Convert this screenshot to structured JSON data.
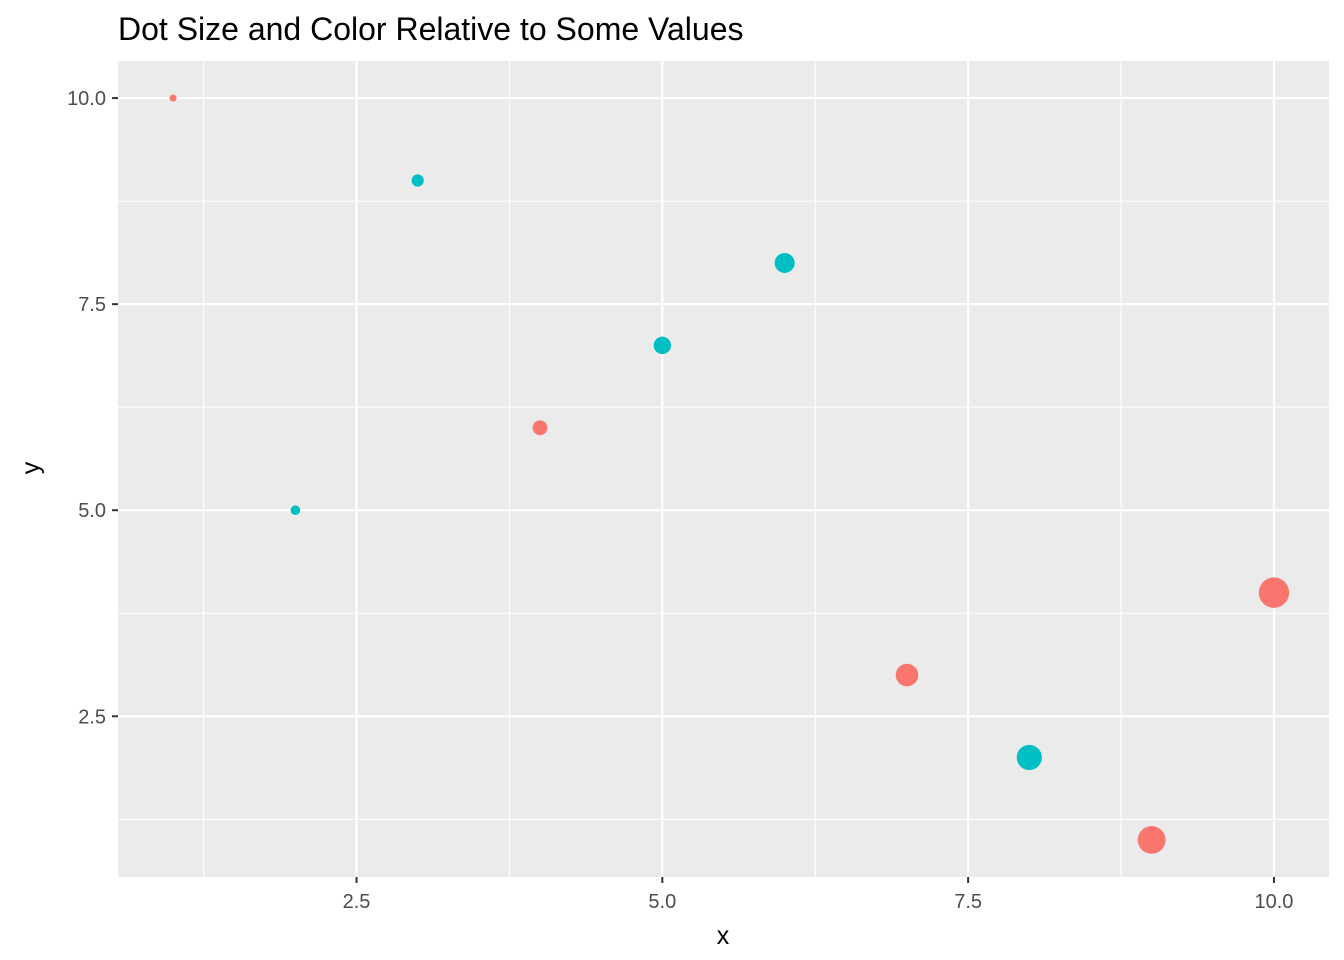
{
  "chart_data": {
    "type": "scatter",
    "title": "Dot Size and Color Relative to Some Values",
    "xlabel": "x",
    "ylabel": "y",
    "xlim": [
      0.55,
      10.45
    ],
    "ylim": [
      0.55,
      10.45
    ],
    "x_ticks": [
      2.5,
      5.0,
      7.5,
      10.0
    ],
    "x_tick_labels": [
      "2.5",
      "5.0",
      "7.5",
      "10.0"
    ],
    "y_ticks": [
      2.5,
      5.0,
      7.5,
      10.0
    ],
    "y_tick_labels": [
      "2.5",
      "5.0",
      "7.5",
      "10.0"
    ],
    "x_minor_ticks": [
      1.25,
      3.75,
      6.25,
      8.75
    ],
    "y_minor_ticks": [
      1.25,
      3.75,
      6.25,
      8.75
    ],
    "grid": true,
    "legend": "none",
    "colors": {
      "panel": "#ebebeb",
      "grid": "#ffffff",
      "group_a": "#f8766d",
      "group_b": "#00bfc4"
    },
    "points": [
      {
        "x": 1,
        "y": 10,
        "size": 1,
        "group": "group_a"
      },
      {
        "x": 2,
        "y": 5,
        "size": 2,
        "group": "group_b"
      },
      {
        "x": 3,
        "y": 9,
        "size": 3,
        "group": "group_b"
      },
      {
        "x": 4,
        "y": 6,
        "size": 4,
        "group": "group_a"
      },
      {
        "x": 5,
        "y": 7,
        "size": 5,
        "group": "group_b"
      },
      {
        "x": 6,
        "y": 8,
        "size": 6,
        "group": "group_b"
      },
      {
        "x": 7,
        "y": 3,
        "size": 7,
        "group": "group_a"
      },
      {
        "x": 8,
        "y": 2,
        "size": 8,
        "group": "group_b"
      },
      {
        "x": 9,
        "y": 1,
        "size": 9,
        "group": "group_a"
      },
      {
        "x": 10,
        "y": 4,
        "size": 10,
        "group": "group_a"
      }
    ]
  }
}
